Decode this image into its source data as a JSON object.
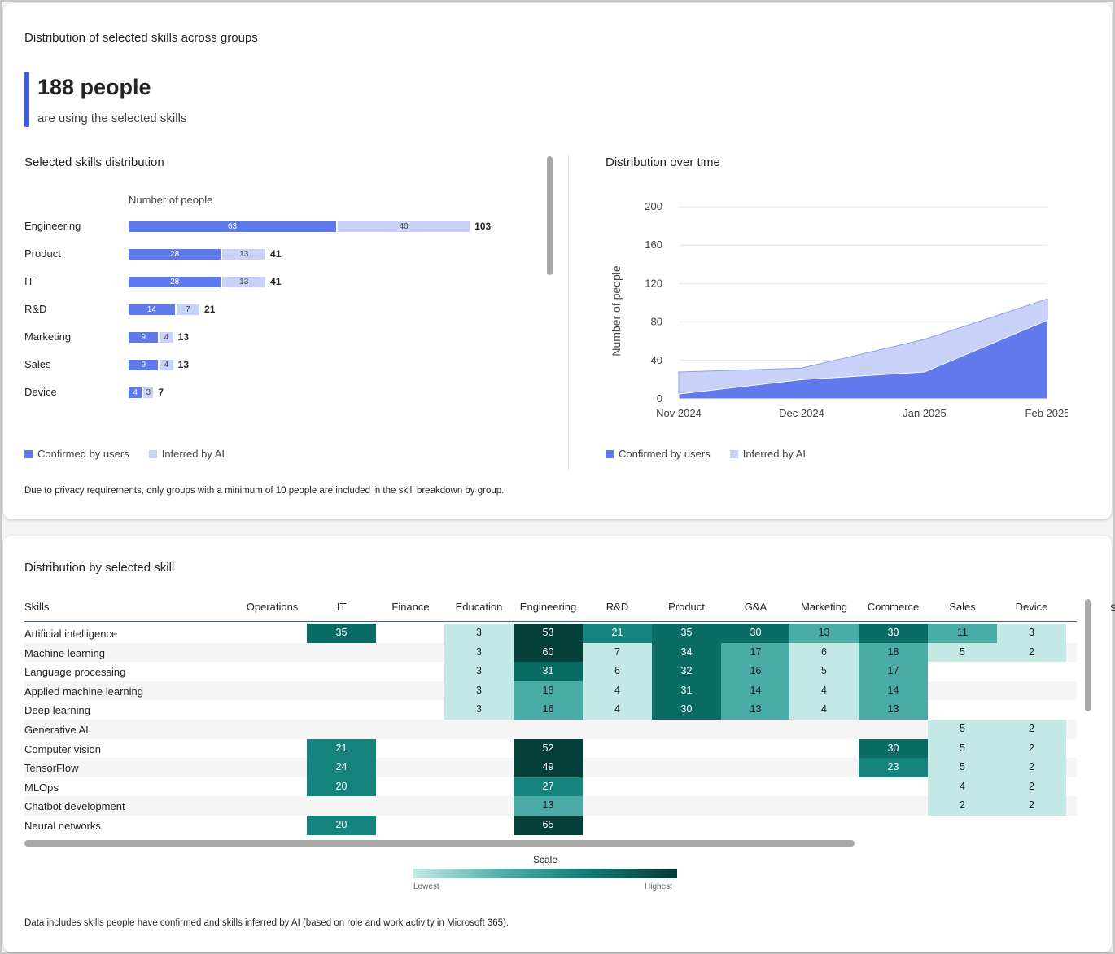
{
  "card1": {
    "title": "Distribution of selected skills across groups",
    "kpi_value": "188 people",
    "kpi_sub": "are using the selected skills",
    "bar_section_title": "Selected skills distribution",
    "bar_axis_title": "Number of people",
    "area_section_title": "Distribution over time",
    "legend": {
      "confirmed": "Confirmed by users",
      "inferred": "Inferred by AI"
    },
    "privacy_note": "Due to privacy requirements, only groups with a minimum of 10 people are included in the skill breakdown by group.",
    "colors": {
      "confirmed": "#5e79eb",
      "inferred": "#c8d1f7",
      "accent": "#3b5bdb"
    }
  },
  "chart_data": [
    {
      "type": "bar",
      "title": "Selected skills distribution",
      "xlabel": "Number of people",
      "ylabel": "",
      "categories": [
        "Engineering",
        "Product",
        "IT",
        "R&D",
        "Marketing",
        "Sales",
        "Device"
      ],
      "series": [
        {
          "name": "Confirmed by users",
          "values": [
            63,
            28,
            28,
            14,
            9,
            9,
            4
          ]
        },
        {
          "name": "Inferred by AI",
          "values": [
            40,
            13,
            13,
            7,
            4,
            4,
            3
          ]
        }
      ],
      "totals": [
        103,
        41,
        41,
        21,
        13,
        13,
        7
      ],
      "stacked": true,
      "legend": "bottom-left"
    },
    {
      "type": "area",
      "title": "Distribution over time",
      "xlabel": "",
      "ylabel": "Number of people",
      "x": [
        "Nov 2024",
        "Dec 2024",
        "Jan 2025",
        "Feb 2025"
      ],
      "series": [
        {
          "name": "Confirmed by users",
          "values": [
            5,
            20,
            28,
            82
          ]
        },
        {
          "name": "Inferred by AI",
          "values": [
            23,
            12,
            34,
            22
          ]
        }
      ],
      "stacked": true,
      "ylim": [
        0,
        200
      ],
      "yticks": [
        0,
        40,
        80,
        120,
        160,
        200
      ],
      "grid": true,
      "legend": "bottom-left"
    },
    {
      "type": "heatmap",
      "title": "Distribution by selected skill",
      "row_header": "Skills",
      "columns": [
        "Operations",
        "IT",
        "Finance",
        "Education",
        "Engineering",
        "R&D",
        "Product",
        "G&A",
        "Marketing",
        "Commerce",
        "Sales",
        "Device"
      ],
      "rows": [
        {
          "label": "Artificial intelligence",
          "values": [
            null,
            35,
            null,
            3,
            53,
            21,
            35,
            30,
            13,
            30,
            11,
            3
          ]
        },
        {
          "label": "Machine learning",
          "values": [
            null,
            null,
            null,
            3,
            60,
            7,
            34,
            17,
            6,
            18,
            5,
            2
          ]
        },
        {
          "label": "Language processing",
          "values": [
            null,
            null,
            null,
            3,
            31,
            6,
            32,
            16,
            5,
            17,
            null,
            null
          ]
        },
        {
          "label": "Applied machine learning",
          "values": [
            null,
            null,
            null,
            3,
            18,
            4,
            31,
            14,
            4,
            14,
            null,
            null
          ]
        },
        {
          "label": "Deep learning",
          "values": [
            null,
            null,
            null,
            3,
            16,
            4,
            30,
            13,
            4,
            13,
            null,
            null
          ]
        },
        {
          "label": "Generative AI",
          "values": [
            null,
            null,
            null,
            null,
            null,
            null,
            null,
            null,
            null,
            null,
            5,
            2
          ]
        },
        {
          "label": "Computer vision",
          "values": [
            null,
            21,
            null,
            null,
            52,
            null,
            null,
            null,
            null,
            30,
            5,
            2
          ]
        },
        {
          "label": "TensorFlow",
          "values": [
            null,
            24,
            null,
            null,
            49,
            null,
            null,
            null,
            null,
            23,
            5,
            2
          ]
        },
        {
          "label": "MLOps",
          "values": [
            null,
            20,
            null,
            null,
            27,
            null,
            null,
            null,
            null,
            null,
            4,
            2
          ]
        },
        {
          "label": "Chatbot development",
          "values": [
            null,
            null,
            null,
            null,
            13,
            null,
            null,
            null,
            null,
            null,
            2,
            2
          ]
        },
        {
          "label": "Neural networks",
          "values": [
            null,
            20,
            null,
            null,
            65,
            null,
            null,
            null,
            null,
            null,
            null,
            null
          ]
        }
      ],
      "scale": {
        "title": "Scale",
        "low": "Lowest",
        "high": "Highest"
      }
    }
  ],
  "card2": {
    "title": "Distribution by selected skill",
    "footnote": "Data includes skills people have confirmed and skills inferred by AI (based on role and work activity in Microsoft 365).",
    "cut_header_char": "S"
  }
}
